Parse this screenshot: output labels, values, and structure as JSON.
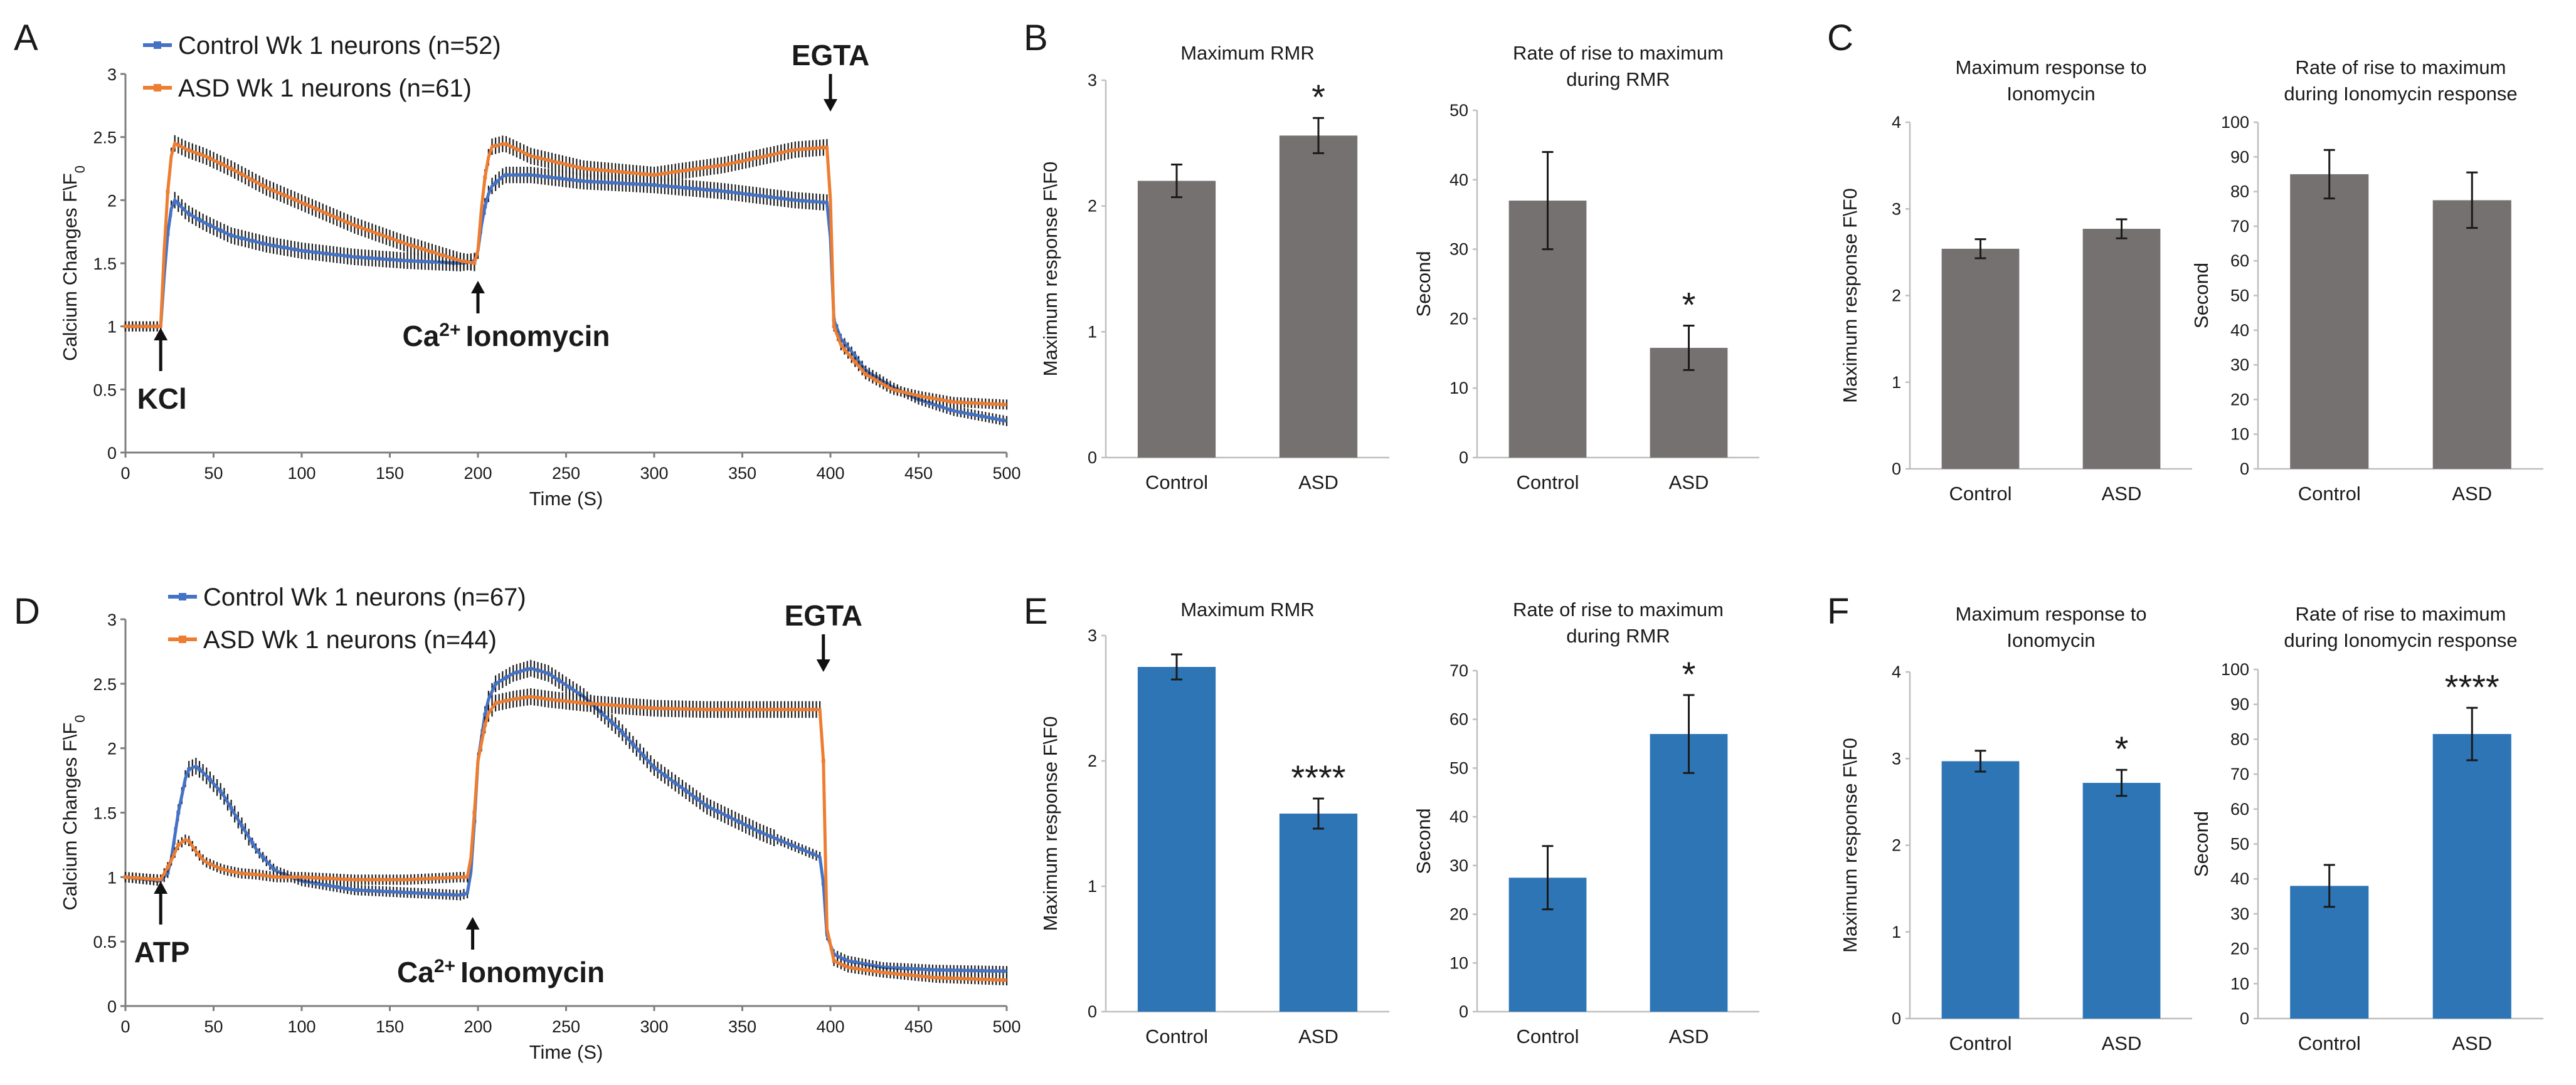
{
  "figure": {
    "colors": {
      "control": "#4472C4",
      "asd": "#ED7D31",
      "bar_gray": "#767171",
      "bar_blue": "#2E75B6",
      "axis": "#7f7f7f",
      "error": "#1a1a1a"
    }
  },
  "chart_data": [
    {
      "panel": "A",
      "type": "line",
      "title": "",
      "xlabel": "Time (S)",
      "ylabel": "Calcium Changes F\\F0",
      "xlim": [
        0,
        500
      ],
      "ylim": [
        0,
        3
      ],
      "xticks": [
        "0",
        "50",
        "100",
        "150",
        "200",
        "250",
        "300",
        "350",
        "400",
        "450",
        "500"
      ],
      "yticks": [
        "0",
        "0.5",
        "1",
        "1.5",
        "2",
        "2.5",
        "3"
      ],
      "legend": "top-left",
      "series": [
        {
          "name": "Control Wk 1 neurons (n=52)",
          "color": "#4472C4",
          "x": [
            0,
            18,
            20,
            22,
            25,
            28,
            35,
            45,
            60,
            80,
            100,
            130,
            160,
            190,
            199,
            200,
            203,
            207,
            215,
            230,
            260,
            300,
            340,
            380,
            399,
            400,
            402,
            406,
            412,
            420,
            435,
            450,
            470,
            500
          ],
          "y": [
            1,
            1,
            1,
            1.4,
            1.9,
            2.0,
            1.9,
            1.82,
            1.72,
            1.65,
            1.6,
            1.55,
            1.52,
            1.5,
            1.52,
            1.6,
            1.9,
            2.1,
            2.2,
            2.2,
            2.15,
            2.12,
            2.07,
            2.0,
            1.98,
            1.7,
            1.05,
            0.9,
            0.8,
            0.65,
            0.52,
            0.42,
            0.33,
            0.25
          ]
        },
        {
          "name": "ASD Wk 1 neurons (n=61)",
          "color": "#ED7D31",
          "x": [
            0,
            18,
            20,
            22,
            25,
            28,
            35,
            45,
            60,
            80,
            100,
            130,
            160,
            190,
            199,
            200,
            203,
            207,
            215,
            230,
            260,
            300,
            340,
            380,
            399,
            400,
            402,
            406,
            412,
            420,
            435,
            450,
            470,
            500
          ],
          "y": [
            1,
            1,
            1,
            1.6,
            2.3,
            2.45,
            2.4,
            2.35,
            2.25,
            2.1,
            1.98,
            1.8,
            1.65,
            1.52,
            1.5,
            1.6,
            2.1,
            2.42,
            2.45,
            2.35,
            2.25,
            2.2,
            2.28,
            2.4,
            2.42,
            2.0,
            1.0,
            0.85,
            0.75,
            0.62,
            0.5,
            0.45,
            0.4,
            0.38
          ]
        }
      ],
      "annotations": [
        {
          "text": "KCl",
          "x": 20
        },
        {
          "text": "Ca²⁺ Ionomycin",
          "x": 200
        },
        {
          "text": "EGTA",
          "x": 400
        }
      ]
    },
    {
      "panel": "B1",
      "type": "bar",
      "title": "Maximum RMR",
      "categories": [
        "Control",
        "ASD"
      ],
      "values": [
        2.2,
        2.56
      ],
      "errors": [
        0.13,
        0.14
      ],
      "ylabel": "Maximum response F\\F0",
      "xlabel": "",
      "ylim": [
        0,
        3
      ],
      "yticks": [
        "0",
        "1",
        "2",
        "3"
      ],
      "significance": [
        "",
        "*"
      ]
    },
    {
      "panel": "B2",
      "type": "bar",
      "title": "Rate of rise to maximum\nduring  RMR",
      "categories": [
        "Control",
        "ASD"
      ],
      "values": [
        37,
        15.8
      ],
      "errors": [
        7,
        3.2
      ],
      "ylabel": "Second",
      "xlabel": "",
      "ylim": [
        0,
        50
      ],
      "yticks": [
        "0",
        "10",
        "20",
        "30",
        "40",
        "50"
      ],
      "significance": [
        "",
        "*"
      ]
    },
    {
      "panel": "C1",
      "type": "bar",
      "title": "Maximum response to\nIonomycin",
      "categories": [
        "Control",
        "ASD"
      ],
      "values": [
        2.54,
        2.77
      ],
      "errors": [
        0.11,
        0.11
      ],
      "ylabel": "Maximum response F\\F0",
      "xlabel": "",
      "ylim": [
        0,
        4
      ],
      "yticks": [
        "0",
        "1",
        "2",
        "3",
        "4"
      ],
      "significance": [
        "",
        ""
      ]
    },
    {
      "panel": "C2",
      "type": "bar",
      "title": "Rate of rise to maximum\nduring Ionomycin response",
      "categories": [
        "Control",
        "ASD"
      ],
      "values": [
        85,
        77.5
      ],
      "errors": [
        7,
        8
      ],
      "ylabel": "Second",
      "xlabel": "",
      "ylim": [
        0,
        100
      ],
      "yticks": [
        "0",
        "10",
        "20",
        "30",
        "40",
        "50",
        "60",
        "70",
        "80",
        "90",
        "100"
      ],
      "significance": [
        "",
        ""
      ]
    },
    {
      "panel": "D",
      "type": "line",
      "title": "",
      "xlabel": "Time (S)",
      "ylabel": "Calcium Changes F\\F0",
      "xlim": [
        0,
        500
      ],
      "ylim": [
        0,
        3
      ],
      "xticks": [
        "0",
        "50",
        "100",
        "150",
        "200",
        "250",
        "300",
        "350",
        "400",
        "450",
        "500"
      ],
      "yticks": [
        "0",
        "0.5",
        "1",
        "1.5",
        "2",
        "2.5",
        "3"
      ],
      "legend": "top-left",
      "series": [
        {
          "name": "Control Wk 1 neurons (n=67)",
          "color": "#4472C4",
          "x": [
            0,
            20,
            25,
            30,
            35,
            40,
            45,
            55,
            65,
            75,
            85,
            100,
            130,
            160,
            190,
            195,
            197,
            200,
            205,
            210,
            220,
            230,
            240,
            260,
            280,
            300,
            330,
            360,
            390,
            395,
            396,
            398,
            402,
            410,
            430,
            460,
            500
          ],
          "y": [
            1,
            0.97,
            1.05,
            1.5,
            1.83,
            1.86,
            1.8,
            1.65,
            1.42,
            1.2,
            1.05,
            0.97,
            0.9,
            0.88,
            0.86,
            0.88,
            1.2,
            1.9,
            2.35,
            2.5,
            2.58,
            2.62,
            2.58,
            2.4,
            2.15,
            1.85,
            1.55,
            1.35,
            1.18,
            1.15,
            0.95,
            0.55,
            0.4,
            0.35,
            0.3,
            0.28,
            0.27
          ]
        },
        {
          "name": "ASD Wk 1 neurons (n=44)",
          "color": "#ED7D31",
          "x": [
            0,
            20,
            25,
            30,
            35,
            40,
            45,
            55,
            65,
            75,
            85,
            100,
            130,
            160,
            190,
            195,
            197,
            200,
            205,
            210,
            220,
            230,
            240,
            260,
            280,
            300,
            330,
            360,
            390,
            395,
            396,
            398,
            402,
            410,
            430,
            460,
            500
          ],
          "y": [
            1,
            0.98,
            1.1,
            1.25,
            1.3,
            1.2,
            1.12,
            1.06,
            1.03,
            1.02,
            1.0,
            1.0,
            0.98,
            0.98,
            1.0,
            1.0,
            1.3,
            1.9,
            2.25,
            2.35,
            2.38,
            2.4,
            2.38,
            2.35,
            2.33,
            2.31,
            2.3,
            2.3,
            2.3,
            2.3,
            1.9,
            0.6,
            0.35,
            0.3,
            0.26,
            0.22,
            0.2
          ]
        }
      ],
      "annotations": [
        {
          "text": "ATP",
          "x": 20
        },
        {
          "text": "Ca²⁺ Ionomycin",
          "x": 197
        },
        {
          "text": "EGTA",
          "x": 396
        }
      ]
    },
    {
      "panel": "E1",
      "type": "bar",
      "title": "Maximum RMR",
      "categories": [
        "Control",
        "ASD"
      ],
      "values": [
        2.75,
        1.58
      ],
      "errors": [
        0.1,
        0.12
      ],
      "ylabel": "Maximum response F\\F0",
      "xlabel": "",
      "ylim": [
        0,
        3
      ],
      "yticks": [
        "0",
        "1",
        "2",
        "3"
      ],
      "significance": [
        "",
        "****"
      ]
    },
    {
      "panel": "E2",
      "type": "bar",
      "title": "Rate of rise to maximum\nduring  RMR",
      "categories": [
        "Control",
        "ASD"
      ],
      "values": [
        27.5,
        57
      ],
      "errors": [
        6.5,
        8
      ],
      "ylabel": "Second",
      "xlabel": "",
      "ylim": [
        0,
        70
      ],
      "yticks": [
        "0",
        "10",
        "20",
        "30",
        "40",
        "50",
        "60",
        "70"
      ],
      "significance": [
        "",
        "*"
      ]
    },
    {
      "panel": "F1",
      "type": "bar",
      "title": "Maximum response to\nIonomycin",
      "categories": [
        "Control",
        "ASD"
      ],
      "values": [
        2.97,
        2.72
      ],
      "errors": [
        0.12,
        0.15
      ],
      "ylabel": "Maximum response F\\F0",
      "xlabel": "",
      "ylim": [
        0,
        4
      ],
      "yticks": [
        "0",
        "1",
        "2",
        "3",
        "4"
      ],
      "significance": [
        "",
        "*"
      ]
    },
    {
      "panel": "F2",
      "type": "bar",
      "title": "Rate of rise to maximum\nduring Ionomycin response",
      "categories": [
        "Control",
        "ASD"
      ],
      "values": [
        38,
        81.5
      ],
      "errors": [
        6,
        7.5
      ],
      "ylabel": "Second",
      "xlabel": "",
      "ylim": [
        0,
        100
      ],
      "yticks": [
        "0",
        "10",
        "20",
        "30",
        "40",
        "50",
        "60",
        "70",
        "80",
        "90",
        "100"
      ],
      "significance": [
        "",
        "****"
      ]
    }
  ]
}
